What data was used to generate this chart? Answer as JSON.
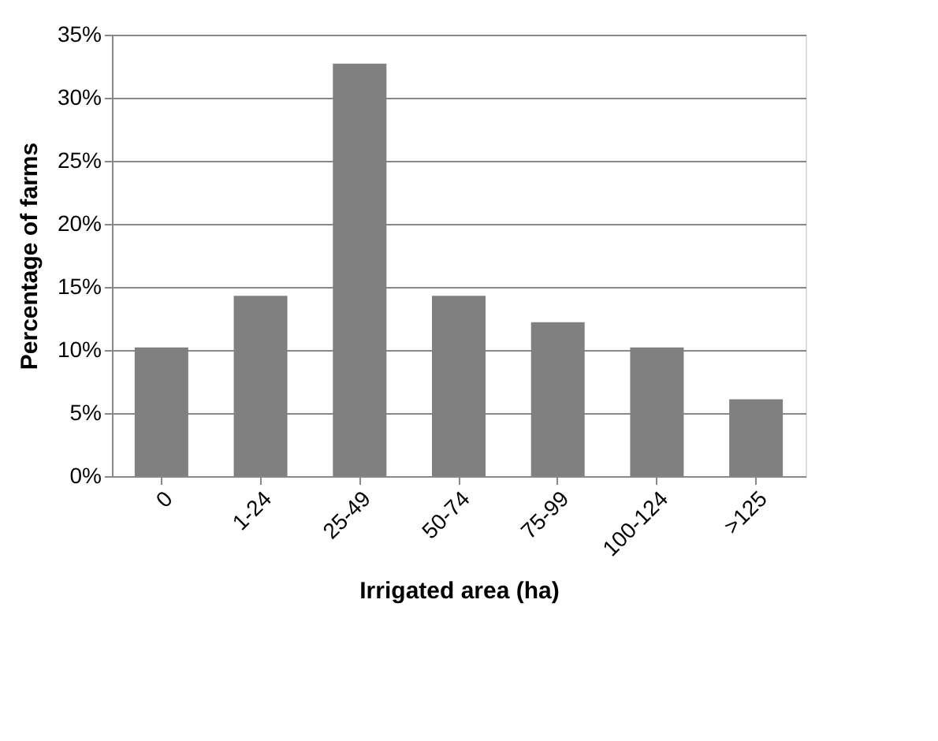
{
  "chart_data": {
    "type": "bar",
    "xlabel": "Irrigated area (ha)",
    "ylabel": "Percentage of farms",
    "categories": [
      "0",
      "1-24",
      "25-49",
      "50-74",
      "75-99",
      "100-124",
      ">125"
    ],
    "values": [
      10.2,
      14.3,
      32.7,
      14.3,
      12.2,
      10.2,
      6.1
    ],
    "color": "#808080",
    "ylim": [
      0,
      35
    ],
    "yticks": [
      {
        "value": 0,
        "label": "0%"
      },
      {
        "value": 5,
        "label": "5%"
      },
      {
        "value": 10,
        "label": "10%"
      },
      {
        "value": 15,
        "label": "15%"
      },
      {
        "value": 20,
        "label": "20%"
      },
      {
        "value": 25,
        "label": "25%"
      },
      {
        "value": 30,
        "label": "30%"
      },
      {
        "value": 35,
        "label": "35%"
      }
    ],
    "grid": "y"
  }
}
